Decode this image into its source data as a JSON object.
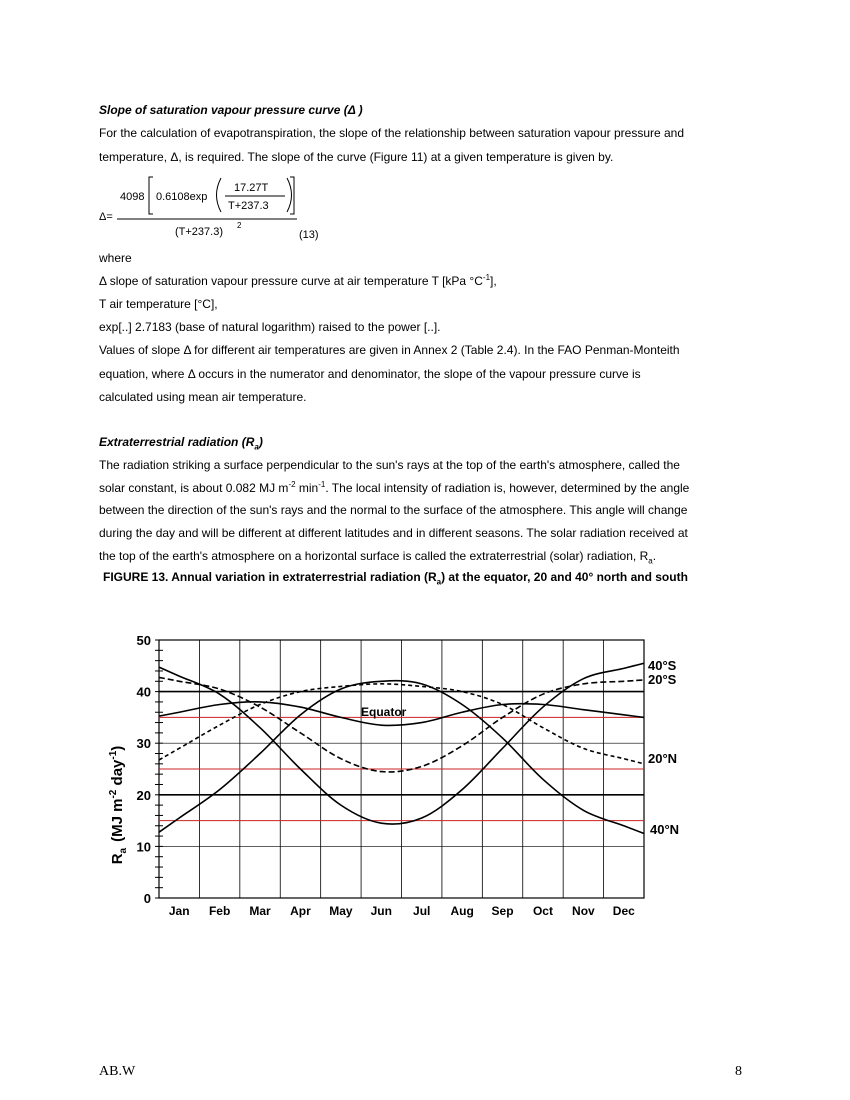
{
  "section1": {
    "heading": "Slope of saturation vapour pressure curve (Δ )",
    "para1_line1": "For the calculation of evapotranspiration, the slope of the relationship between saturation vapour pressure and",
    "para1_line2": "temperature, Δ, is required. The slope of the curve (Figure 11) at a given temperature is given by.",
    "equation": {
      "lhs": "Δ=",
      "num_coef": "4098",
      "inner_coef": "0.6108exp",
      "frac_num": "17.27T",
      "frac_den": "T+237.3",
      "denominator": "(T+237.3)",
      "exponent": "2",
      "number": "(13)"
    },
    "where": "where",
    "def1_pre": "Δ slope of saturation vapour pressure curve at air temperature T [kPa °C",
    "def1_sup": "-1",
    "def1_post": "],",
    "def2": "T air temperature [°C],",
    "def3": "exp[..] 2.7183 (base of natural logarithm) raised to the power [..].",
    "para2_line1": "Values of slope Δ for different air temperatures are given in Annex 2 (Table 2.4). In the FAO Penman-Monteith",
    "para2_line2": "equation, where Δ occurs in the numerator and denominator, the slope of the vapour pressure curve is",
    "para2_line3": "calculated using mean air temperature."
  },
  "section2": {
    "heading_pre": "Extraterrestrial radiation (R",
    "heading_sub": "a",
    "heading_post": ")",
    "line1": "The radiation striking a surface perpendicular to the sun's rays at the top of the earth's atmosphere, called the",
    "line2_a": "solar constant, is about 0.082 MJ m",
    "line2_sup1": "-2",
    "line2_b": " min",
    "line2_sup2": "-1",
    "line2_c": ". The local intensity of radiation is, however, determined by the angle",
    "line3": "between the direction of the sun's rays and the normal to the surface of the atmosphere. This angle will change",
    "line4": "during the day and will be different at different latitudes and in different seasons. The solar radiation received at",
    "line5_pre": "the top of the earth's atmosphere on a horizontal surface is called the extraterrestrial (solar) radiation, R",
    "line5_sub": "a",
    "line5_post": "."
  },
  "figure_caption_pre": "FIGURE 13. Annual variation in extraterrestrial radiation (R",
  "figure_caption_sub": "a",
  "figure_caption_post": ") at the equator, 20 and 40° north and south",
  "chart_data": {
    "type": "line",
    "x": [
      "Jan",
      "Feb",
      "Mar",
      "Apr",
      "May",
      "Jun",
      "Jul",
      "Aug",
      "Sep",
      "Oct",
      "Nov",
      "Dec"
    ],
    "ylim": [
      0,
      50
    ],
    "yticks": [
      0,
      10,
      20,
      30,
      40,
      50
    ],
    "ylabel_main": "R",
    "ylabel_sub": "a",
    "ylabel_rest": "(MJ m",
    "ylabel_sup1": "-2",
    "ylabel_mid": " day",
    "ylabel_sup2": "-1",
    "ylabel_end": ")",
    "grid": true,
    "series": [
      {
        "name": "40°S",
        "values": [
          43.0,
          39.5,
          33.0,
          25.0,
          18.0,
          14.5,
          15.5,
          21.0,
          29.0,
          37.0,
          42.5,
          44.5
        ]
      },
      {
        "name": "20°S",
        "values": [
          42.0,
          40.5,
          37.0,
          32.0,
          27.0,
          24.5,
          25.5,
          29.5,
          35.0,
          39.5,
          41.5,
          42.0
        ]
      },
      {
        "name": "Equator",
        "values": [
          36.0,
          37.5,
          38.0,
          37.0,
          35.0,
          33.5,
          34.0,
          36.0,
          37.5,
          37.5,
          36.5,
          35.5
        ]
      },
      {
        "name": "20°N",
        "values": [
          29.0,
          33.5,
          37.5,
          40.0,
          41.0,
          41.5,
          41.0,
          40.0,
          37.5,
          33.0,
          29.0,
          27.0
        ]
      },
      {
        "name": "40°N",
        "values": [
          15.5,
          21.0,
          28.0,
          35.5,
          40.5,
          42.0,
          41.5,
          37.5,
          31.0,
          23.0,
          17.0,
          14.0
        ]
      }
    ],
    "red_lines": [
      15,
      25,
      35
    ]
  },
  "footer": {
    "left": "AB.W",
    "right": "8"
  }
}
